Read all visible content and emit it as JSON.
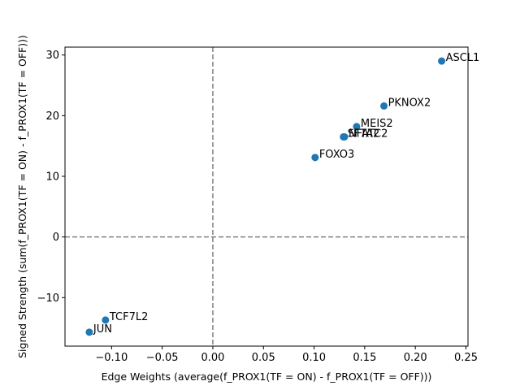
{
  "chart_data": {
    "type": "scatter",
    "title": "",
    "xlabel": "Edge Weights (average(f_PROX1(TF = ON) - f_PROX1(TF = OFF)))",
    "ylabel": "Signed Strength (sum(f_PROX1(TF = ON) - f_PROX1(TF = OFF)))",
    "xlim": [
      -0.146,
      0.252
    ],
    "ylim": [
      -18.0,
      31.3
    ],
    "xticks": [
      -0.1,
      -0.05,
      0.0,
      0.05,
      0.1,
      0.15,
      0.2,
      0.25
    ],
    "xtick_labels": [
      "−0.10",
      "−0.05",
      "0.00",
      "0.05",
      "0.10",
      "0.15",
      "0.20",
      "0.25"
    ],
    "yticks": [
      -10,
      0,
      10,
      20,
      30
    ],
    "ytick_labels": [
      "−10",
      "0",
      "10",
      "20",
      "30"
    ],
    "reference_lines": {
      "x": 0,
      "y": 0,
      "style": "dashed",
      "color": "#808080"
    },
    "grid": false,
    "marker_color": "#1f77b4",
    "points": [
      {
        "label": "ASCL1",
        "x": 0.226,
        "y": 29.0
      },
      {
        "label": "PKNOX2",
        "x": 0.169,
        "y": 21.6
      },
      {
        "label": "MEIS2",
        "x": 0.142,
        "y": 18.2
      },
      {
        "label": "SFTA2",
        "x": 0.129,
        "y": 16.5
      },
      {
        "label": "NFATC2",
        "x": 0.13,
        "y": 16.5
      },
      {
        "label": "FOXO3",
        "x": 0.101,
        "y": 13.1
      },
      {
        "label": "TCF7L2",
        "x": -0.106,
        "y": -13.7
      },
      {
        "label": "JUN",
        "x": -0.122,
        "y": -15.7
      }
    ]
  }
}
